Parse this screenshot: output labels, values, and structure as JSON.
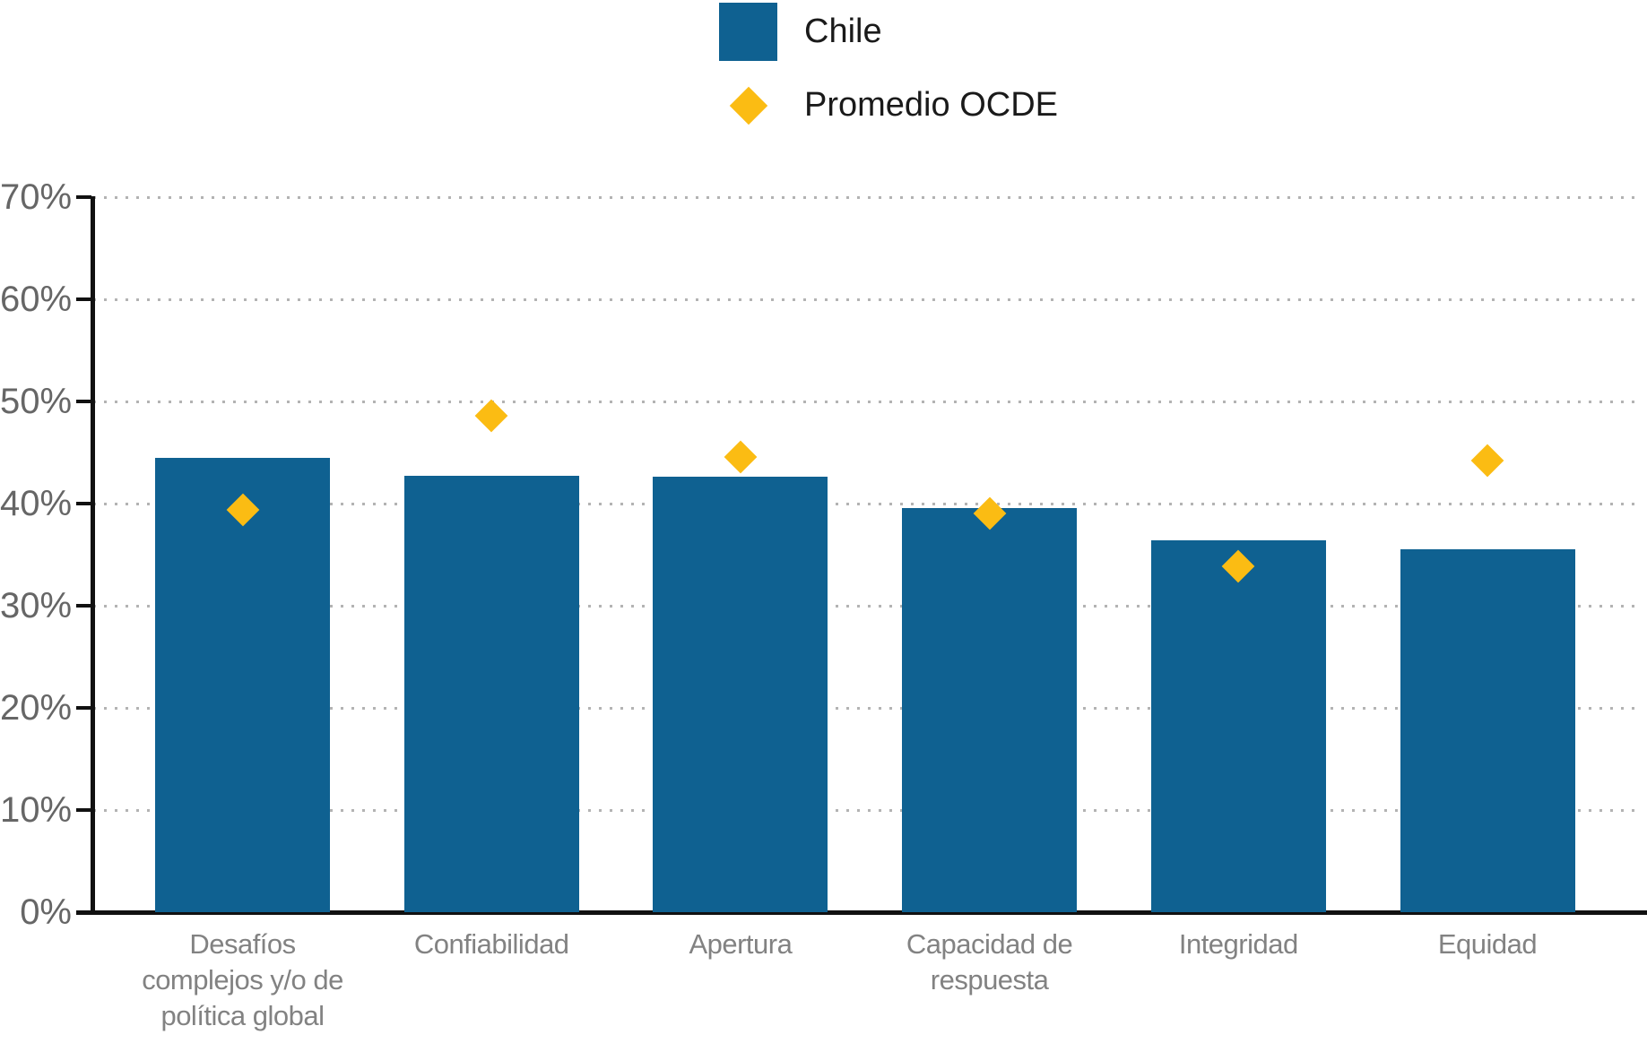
{
  "chart_data": {
    "type": "bar",
    "title": "",
    "categories": [
      "Desafíos complejos y/o de política global",
      "Confiabilidad",
      "Apertura",
      "Capacidad de respuesta",
      "Integridad",
      "Equidad"
    ],
    "series": [
      {
        "name": "Chile",
        "type": "bar",
        "color": "#0F6191",
        "values": [
          44.5,
          42.7,
          42.6,
          39.6,
          36.4,
          35.5
        ]
      },
      {
        "name": "Promedio OCDE",
        "type": "scatter",
        "marker": "diamond",
        "color": "#FBBC13",
        "values": [
          39.4,
          48.6,
          44.6,
          39.0,
          33.9,
          44.2
        ]
      }
    ],
    "xlabel": "",
    "ylabel": "",
    "ylim": [
      0,
      70
    ],
    "yticks": [
      0,
      10,
      20,
      30,
      40,
      50,
      60,
      70
    ],
    "ytick_suffix": "%",
    "grid": "dotted-horizontal",
    "legend_position": "top-center"
  },
  "colors": {
    "bar_fill": "#0F6191",
    "marker_fill": "#FBBC13",
    "axis": "#111111",
    "gridline": "#B3B3B3",
    "ytick_text": "#666666",
    "category_text": "#828282",
    "legend_text": "#1A1A1A"
  }
}
